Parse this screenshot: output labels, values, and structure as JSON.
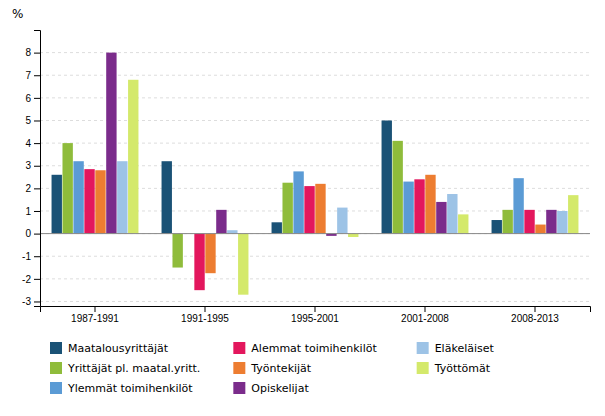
{
  "chart_data": {
    "type": "bar",
    "ylabel": "%",
    "categories": [
      "1987-1991",
      "1991-1995",
      "1995-2001",
      "2001-2008",
      "2008-2013"
    ],
    "series": [
      {
        "name": "Maatalousyrittäjät",
        "color": "#1a5276",
        "values": [
          2.6,
          3.2,
          0.5,
          5.0,
          0.6
        ]
      },
      {
        "name": "Yrittäjät pl. maatal.yritt.",
        "color": "#8fbc3b",
        "values": [
          4.0,
          -1.5,
          2.25,
          4.1,
          1.05
        ]
      },
      {
        "name": "Ylemmät toimihenkilöt",
        "color": "#5b9bd5",
        "values": [
          3.2,
          0.0,
          2.75,
          2.3,
          2.45
        ]
      },
      {
        "name": "Alemmat toimihenkilöt",
        "color": "#e3175d",
        "values": [
          2.85,
          -2.5,
          2.1,
          2.4,
          1.05
        ]
      },
      {
        "name": "Työntekijät",
        "color": "#ed7d31",
        "values": [
          2.8,
          -1.75,
          2.2,
          2.6,
          0.4
        ]
      },
      {
        "name": "Opiskelijat",
        "color": "#7b2c8b",
        "values": [
          8.0,
          1.05,
          -0.1,
          1.4,
          1.05
        ]
      },
      {
        "name": "Eläkeläiset",
        "color": "#9dc3e6",
        "values": [
          3.2,
          0.15,
          1.15,
          1.75,
          1.0
        ]
      },
      {
        "name": "Työttömät",
        "color": "#d4e96b",
        "values": [
          6.8,
          -2.7,
          -0.15,
          0.85,
          1.7
        ]
      }
    ],
    "ylim": [
      -3.2,
      9.0
    ],
    "yticks": [
      -3,
      -2,
      -1,
      0,
      1,
      2,
      3,
      4,
      5,
      6,
      7,
      8
    ],
    "grid": true,
    "legend": "bottom"
  }
}
